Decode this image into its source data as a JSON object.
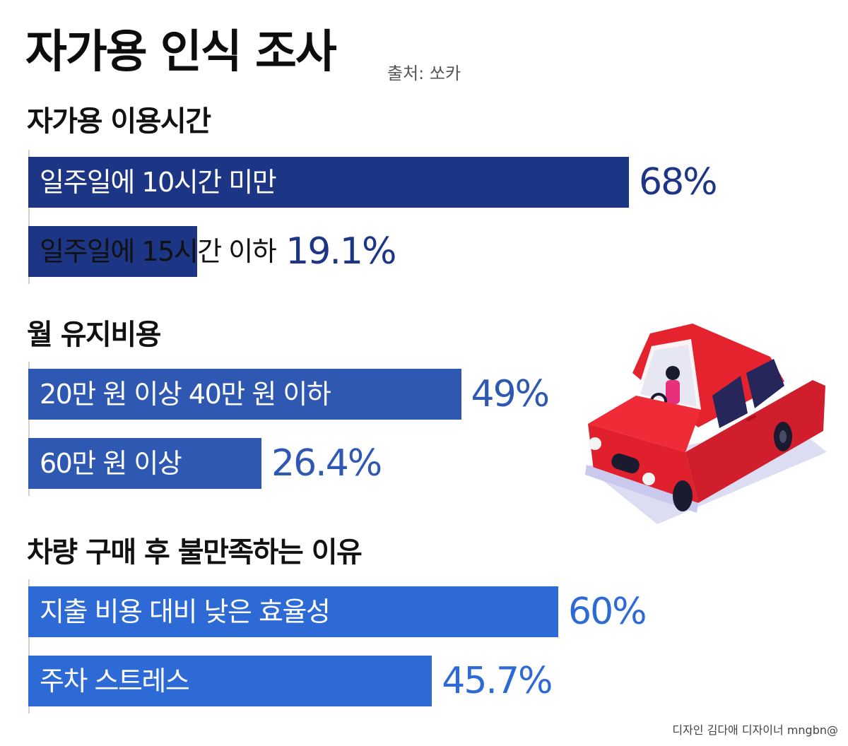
{
  "title": "자가용 인식 조사",
  "source": "출처: 쏘카",
  "credit": "디자인 김다애 디자이너 mngbn@",
  "colors": {
    "section1_bar": "#1c3585",
    "section1_value": "#1c3585",
    "section2_bar": "#2f58b3",
    "section2_value": "#2f58b3",
    "section3_bar": "#2e6ad6",
    "section3_value": "#2e6ad6"
  },
  "chart_data": [
    {
      "type": "bar",
      "orientation": "horizontal",
      "title": "자가용 이용시간",
      "categories": [
        "일주일에 10시간 미만",
        "일주일에 15시간 이하"
      ],
      "values": [
        68,
        19.1
      ],
      "value_labels": [
        "68%",
        "19.1%"
      ],
      "unit": "%",
      "xlim": [
        0,
        100
      ]
    },
    {
      "type": "bar",
      "orientation": "horizontal",
      "title": "월 유지비용",
      "categories": [
        "20만 원 이상 40만 원 이하",
        "60만 원 이상"
      ],
      "values": [
        49,
        26.4
      ],
      "value_labels": [
        "49%",
        "26.4%"
      ],
      "unit": "%",
      "xlim": [
        0,
        100
      ]
    },
    {
      "type": "bar",
      "orientation": "horizontal",
      "title": "차량 구매 후 불만족하는 이유",
      "categories": [
        "지출 비용 대비 낮은 효율성",
        "주차 스트레스"
      ],
      "values": [
        60,
        45.7
      ],
      "value_labels": [
        "60%",
        "45.7%"
      ],
      "unit": "%",
      "xlim": [
        0,
        100
      ]
    }
  ]
}
